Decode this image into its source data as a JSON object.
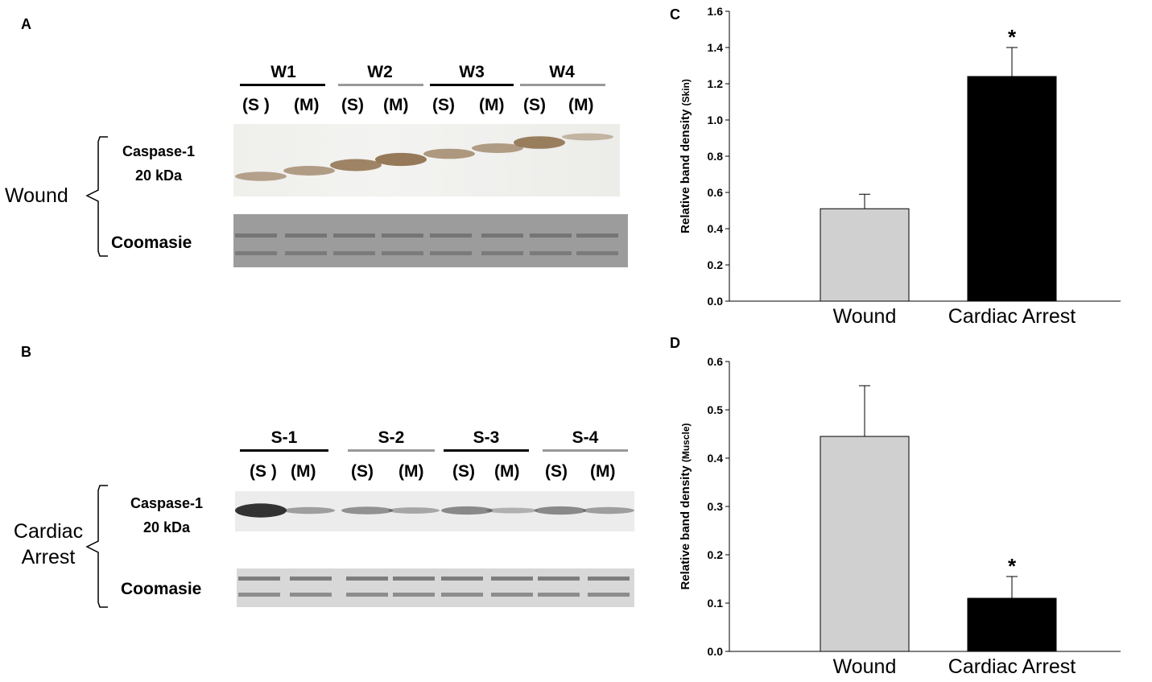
{
  "panel_a": {
    "letter": "A",
    "condition_label": "Wound",
    "lane_groups": [
      "W1",
      "W2",
      "W3",
      "W4"
    ],
    "lane_subs": [
      "(S )",
      "(M)",
      "(S)",
      "(M)",
      "(S)",
      "(M)",
      "(S)",
      "(M)"
    ],
    "band_label_1": "Caspase-1",
    "band_label_2": "20 kDa",
    "stain_label": "Coomasie",
    "band_intensity": [
      0.45,
      0.5,
      0.75,
      0.85,
      0.55,
      0.5,
      0.8,
      0.25
    ]
  },
  "panel_b": {
    "letter": "B",
    "condition_label_1": "Cardiac",
    "condition_label_2": "Arrest",
    "lane_groups": [
      "S-1",
      "S-2",
      "S-3",
      "S-4"
    ],
    "lane_subs": [
      "(S )",
      "(M)",
      "(S)",
      "(M)",
      "(S)",
      "(M)",
      "(S)",
      "(M)"
    ],
    "band_label_1": "Caspase-1",
    "band_label_2": "20 kDa",
    "stain_label": "Coomasie",
    "band_intensity": [
      0.95,
      0.2,
      0.3,
      0.15,
      0.35,
      0.08,
      0.35,
      0.2
    ]
  },
  "colors": {
    "wound_bar": "#d0d0d0",
    "cardiac_bar": "#000000",
    "group_line_dark": "#000000",
    "group_line_light": "#999999",
    "wound_band": "#8a6a45",
    "cardiac_band": "#2a2a2a"
  },
  "chart_data": [
    {
      "panel": "C",
      "type": "bar",
      "categories": [
        "Wound",
        "Cardiac Arrest"
      ],
      "values": [
        0.51,
        1.24
      ],
      "errors": [
        0.08,
        0.16
      ],
      "significance": [
        "",
        "*"
      ],
      "ylabel": "Relative band density",
      "ylabel_suffix": "(Skin)",
      "ylim": [
        0,
        1.6
      ],
      "yticks": [
        "0.0",
        "0.2",
        "0.4",
        "0.6",
        "0.8",
        "1.0",
        "1.2",
        "1.4",
        "1.6"
      ],
      "grid": false
    },
    {
      "panel": "D",
      "type": "bar",
      "categories": [
        "Wound",
        "Cardiac Arrest"
      ],
      "values": [
        0.445,
        0.11
      ],
      "errors": [
        0.105,
        0.045
      ],
      "significance": [
        "",
        "*"
      ],
      "ylabel": "Relative band density",
      "ylabel_suffix": "(Muscle)",
      "ylim": [
        0,
        0.6
      ],
      "yticks": [
        "0.0",
        "0.1",
        "0.2",
        "0.3",
        "0.4",
        "0.5",
        "0.6"
      ],
      "grid": false
    }
  ]
}
